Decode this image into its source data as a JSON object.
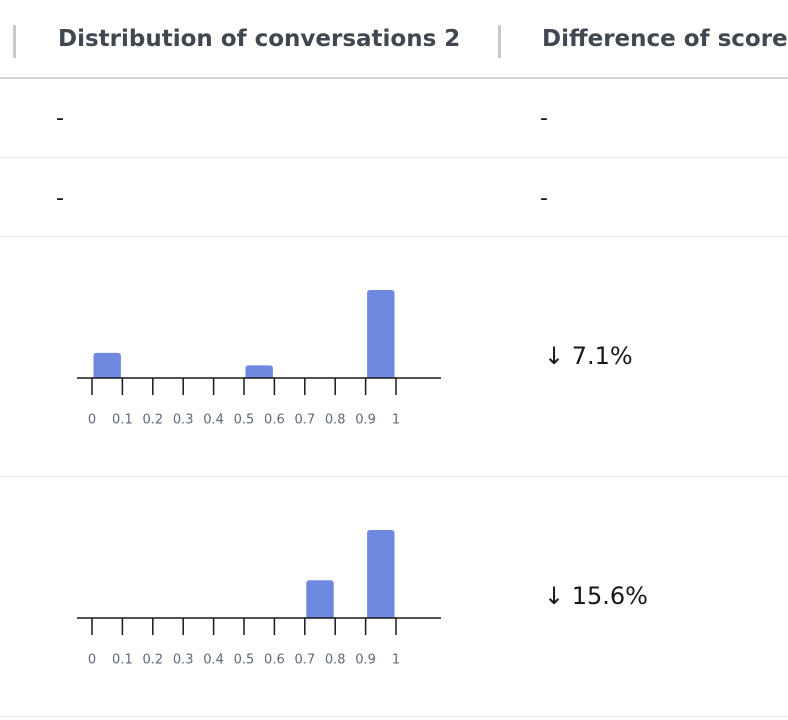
{
  "table": {
    "columns": [
      "Distribution of conversations 2",
      "Difference of score"
    ],
    "rows": [
      {
        "distribution": "-",
        "difference": "-"
      },
      {
        "distribution": "-",
        "difference": "-"
      },
      {
        "distribution": {
          "type": "histogram",
          "color": "#7089e0",
          "bins": [
            0,
            0.1,
            0.2,
            0.3,
            0.4,
            0.5,
            0.6,
            0.7,
            0.8,
            0.9,
            1
          ],
          "counts": [
            2,
            0,
            0,
            0,
            0,
            1,
            0,
            0,
            0,
            7
          ],
          "xlim": [
            0,
            1
          ],
          "xticks": [
            0,
            0.1,
            0.2,
            0.3,
            0.4,
            0.5,
            0.6,
            0.7,
            0.8,
            0.9,
            1
          ]
        },
        "difference": "↓ 7.1%"
      },
      {
        "distribution": {
          "type": "histogram",
          "color": "#7089e0",
          "bins": [
            0,
            0.1,
            0.2,
            0.3,
            0.4,
            0.5,
            0.6,
            0.7,
            0.8,
            0.9,
            1
          ],
          "counts": [
            0,
            0,
            0,
            0,
            0,
            0,
            0,
            3,
            0,
            7
          ],
          "xlim": [
            0,
            1
          ],
          "xticks": [
            0,
            0.1,
            0.2,
            0.3,
            0.4,
            0.5,
            0.6,
            0.7,
            0.8,
            0.9,
            1
          ]
        },
        "difference": "↓ 15.6%"
      }
    ]
  }
}
